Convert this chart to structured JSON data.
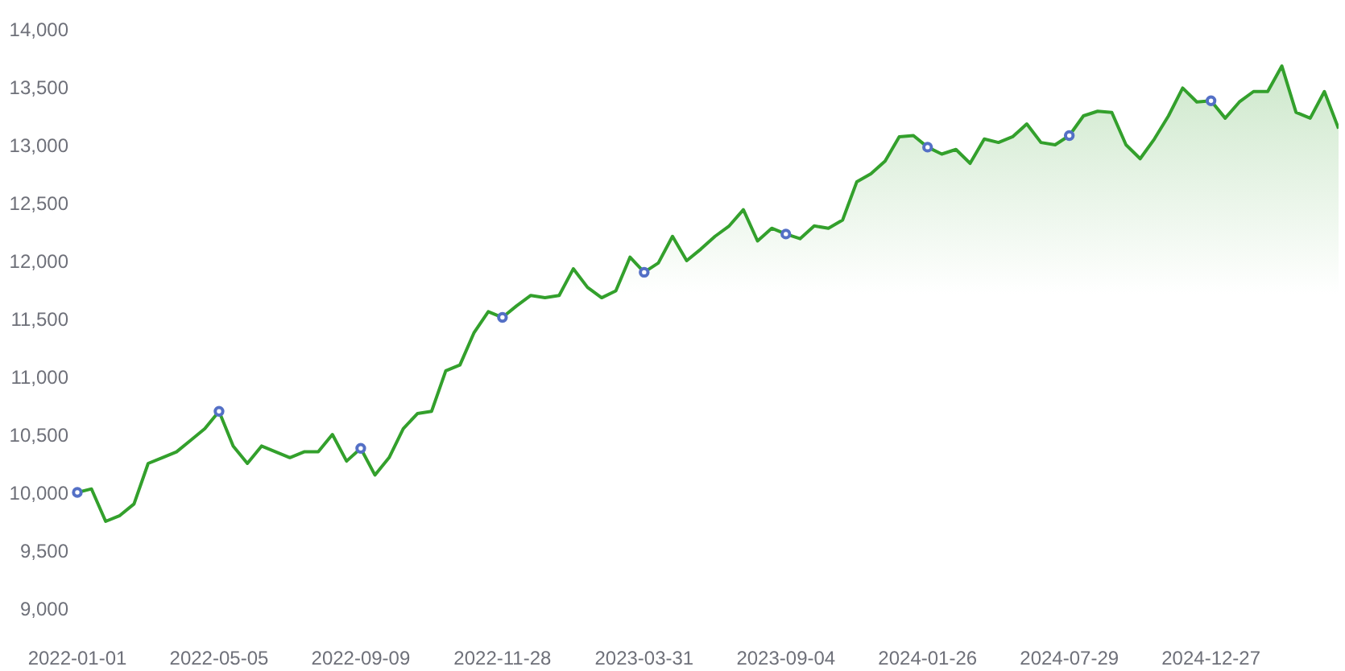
{
  "chart_data": {
    "type": "area",
    "categories": [
      "2022-01-01",
      null,
      null,
      null,
      null,
      null,
      null,
      null,
      null,
      null,
      "2022-05-05",
      null,
      null,
      null,
      null,
      null,
      null,
      null,
      null,
      null,
      "2022-09-09",
      null,
      null,
      null,
      null,
      null,
      null,
      null,
      null,
      null,
      "2022-11-28",
      null,
      null,
      null,
      null,
      null,
      null,
      null,
      null,
      null,
      "2023-03-31",
      null,
      null,
      null,
      null,
      null,
      null,
      null,
      null,
      null,
      "2023-09-04",
      null,
      null,
      null,
      null,
      null,
      null,
      null,
      null,
      null,
      "2024-01-26",
      null,
      null,
      null,
      null,
      null,
      null,
      null,
      null,
      null,
      "2024-07-29",
      null,
      null,
      null,
      null,
      null,
      null,
      null,
      null,
      null,
      "2024-12-27",
      null,
      null,
      null,
      null,
      null,
      null,
      null,
      null,
      null
    ],
    "series": [
      {
        "color": "#33a02c",
        "values": [
          10000,
          10030,
          9750,
          9800,
          9900,
          10250,
          10300,
          10350,
          10450,
          10550,
          10700,
          10400,
          10250,
          10400,
          10350,
          10300,
          10350,
          10350,
          10500,
          10270,
          10380,
          10150,
          10300,
          10550,
          10680,
          10700,
          11050,
          11100,
          11380,
          11560,
          11510,
          11610,
          11700,
          11680,
          11700,
          11930,
          11770,
          11680,
          11740,
          12030,
          11900,
          11980,
          12210,
          12000,
          12100,
          12210,
          12300,
          12440,
          12170,
          12280,
          12230,
          12190,
          12300,
          12280,
          12350,
          12680,
          12750,
          12860,
          13070,
          13080,
          12980,
          12920,
          12960,
          12840,
          13050,
          13020,
          13070,
          13180,
          13020,
          13000,
          13080,
          13250,
          13290,
          13280,
          13000,
          12880,
          13050,
          13250,
          13490,
          13370,
          13380,
          13230,
          13370,
          13460,
          13460,
          13680,
          13280,
          13230,
          13460,
          13140
        ]
      },
      {
        "type": "scatter",
        "color": "#5470c6",
        "marker": "circle",
        "values": [
          10000,
          null,
          null,
          null,
          null,
          null,
          null,
          null,
          null,
          null,
          10700,
          null,
          null,
          null,
          null,
          null,
          null,
          null,
          null,
          null,
          10380,
          null,
          null,
          null,
          null,
          null,
          null,
          null,
          null,
          null,
          11510,
          null,
          null,
          null,
          null,
          null,
          null,
          null,
          null,
          null,
          11900,
          null,
          null,
          null,
          null,
          null,
          null,
          null,
          null,
          null,
          12230,
          null,
          null,
          null,
          null,
          null,
          null,
          null,
          null,
          null,
          12980,
          null,
          null,
          null,
          null,
          null,
          null,
          null,
          null,
          null,
          13080,
          null,
          null,
          null,
          null,
          null,
          null,
          null,
          null,
          null,
          13380,
          null,
          null,
          null,
          null,
          null,
          null,
          null,
          null,
          null
        ]
      }
    ],
    "ylim": [
      9000,
      14000
    ],
    "yticks": [
      {
        "value": 9000,
        "label": "9,000"
      },
      {
        "value": 9500,
        "label": "9,500"
      },
      {
        "value": 10000,
        "label": "10,000"
      },
      {
        "value": 10500,
        "label": "10,500"
      },
      {
        "value": 11000,
        "label": "11,000"
      },
      {
        "value": 11500,
        "label": "11,500"
      },
      {
        "value": 12000,
        "label": "12,000"
      },
      {
        "value": 12500,
        "label": "12,500"
      },
      {
        "value": 13000,
        "label": "13,000"
      },
      {
        "value": 13500,
        "label": "13,500"
      },
      {
        "value": 14000,
        "label": "14,000"
      }
    ],
    "grid": false
  }
}
